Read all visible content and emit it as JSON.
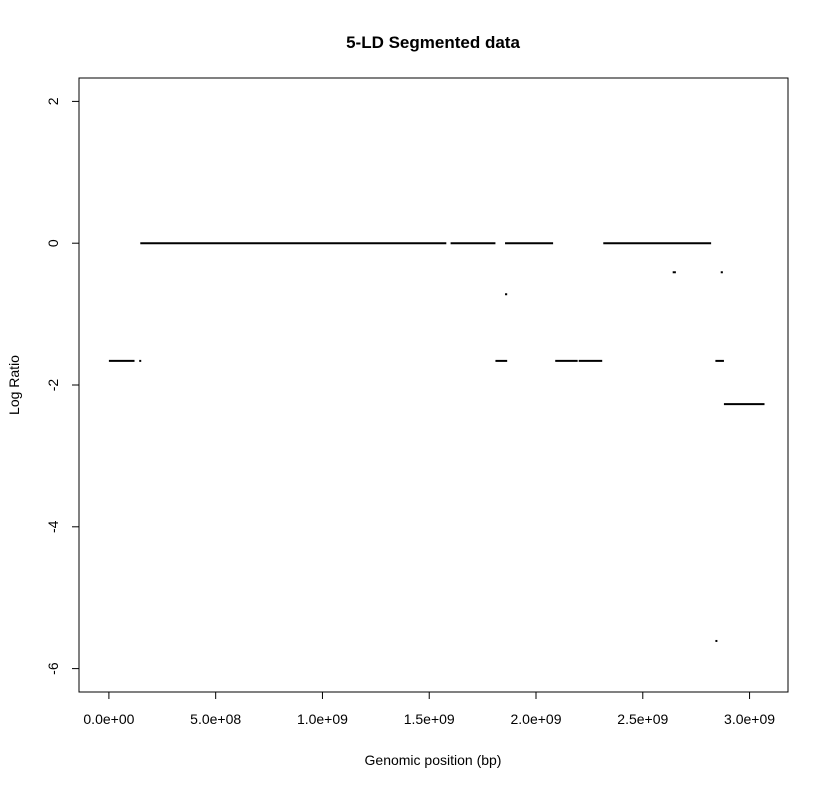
{
  "chart_data": {
    "type": "line",
    "title": "5-LD Segmented data",
    "xlabel": "Genomic position (bp)",
    "ylabel": "Log Ratio",
    "xlim": [
      -140000000.0,
      3180000000.0
    ],
    "ylim": [
      -6.33,
      2.33
    ],
    "xticks": [
      0,
      500000000.0,
      1000000000.0,
      1500000000.0,
      2000000000.0,
      2500000000.0,
      3000000000.0
    ],
    "xtick_labels": [
      "0.0e+00",
      "5.0e+08",
      "1.0e+09",
      "1.5e+09",
      "2.0e+09",
      "2.5e+09",
      "3.0e+09"
    ],
    "yticks": [
      2,
      0,
      -2,
      -4,
      -6
    ],
    "ytick_labels": [
      "2",
      "0",
      "-2",
      "-4",
      "-6"
    ],
    "grid": false,
    "legend": "none",
    "line_color": "#000000",
    "segments": [
      {
        "x0": 0.0,
        "x1": 120000000.0,
        "y": -1.66
      },
      {
        "x0": 142000000.0,
        "x1": 150000000.0,
        "y": -1.66
      },
      {
        "x0": 147000000.0,
        "x1": 1580000000.0,
        "y": 0.0
      },
      {
        "x0": 1600000000.0,
        "x1": 1810000000.0,
        "y": 0.0
      },
      {
        "x0": 1810000000.0,
        "x1": 1865000000.0,
        "y": -1.66
      },
      {
        "x0": 1855000000.0,
        "x1": 1865000000.0,
        "y": -0.72
      },
      {
        "x0": 1855000000.0,
        "x1": 2080000000.0,
        "y": 0.0
      },
      {
        "x0": 2090000000.0,
        "x1": 2195000000.0,
        "y": -1.66
      },
      {
        "x0": 2200000000.0,
        "x1": 2310000000.0,
        "y": -1.66
      },
      {
        "x0": 2315000000.0,
        "x1": 2820000000.0,
        "y": 0.0
      },
      {
        "x0": 2640000000.0,
        "x1": 2655000000.0,
        "y": -0.41
      },
      {
        "x0": 2840000000.0,
        "x1": 2845000000.0,
        "y": -5.61
      },
      {
        "x0": 2840000000.0,
        "x1": 2880000000.0,
        "y": -1.66
      },
      {
        "x0": 2865000000.0,
        "x1": 2875000000.0,
        "y": -0.41
      },
      {
        "x0": 2880000000.0,
        "x1": 3070000000.0,
        "y": -2.27
      }
    ]
  }
}
